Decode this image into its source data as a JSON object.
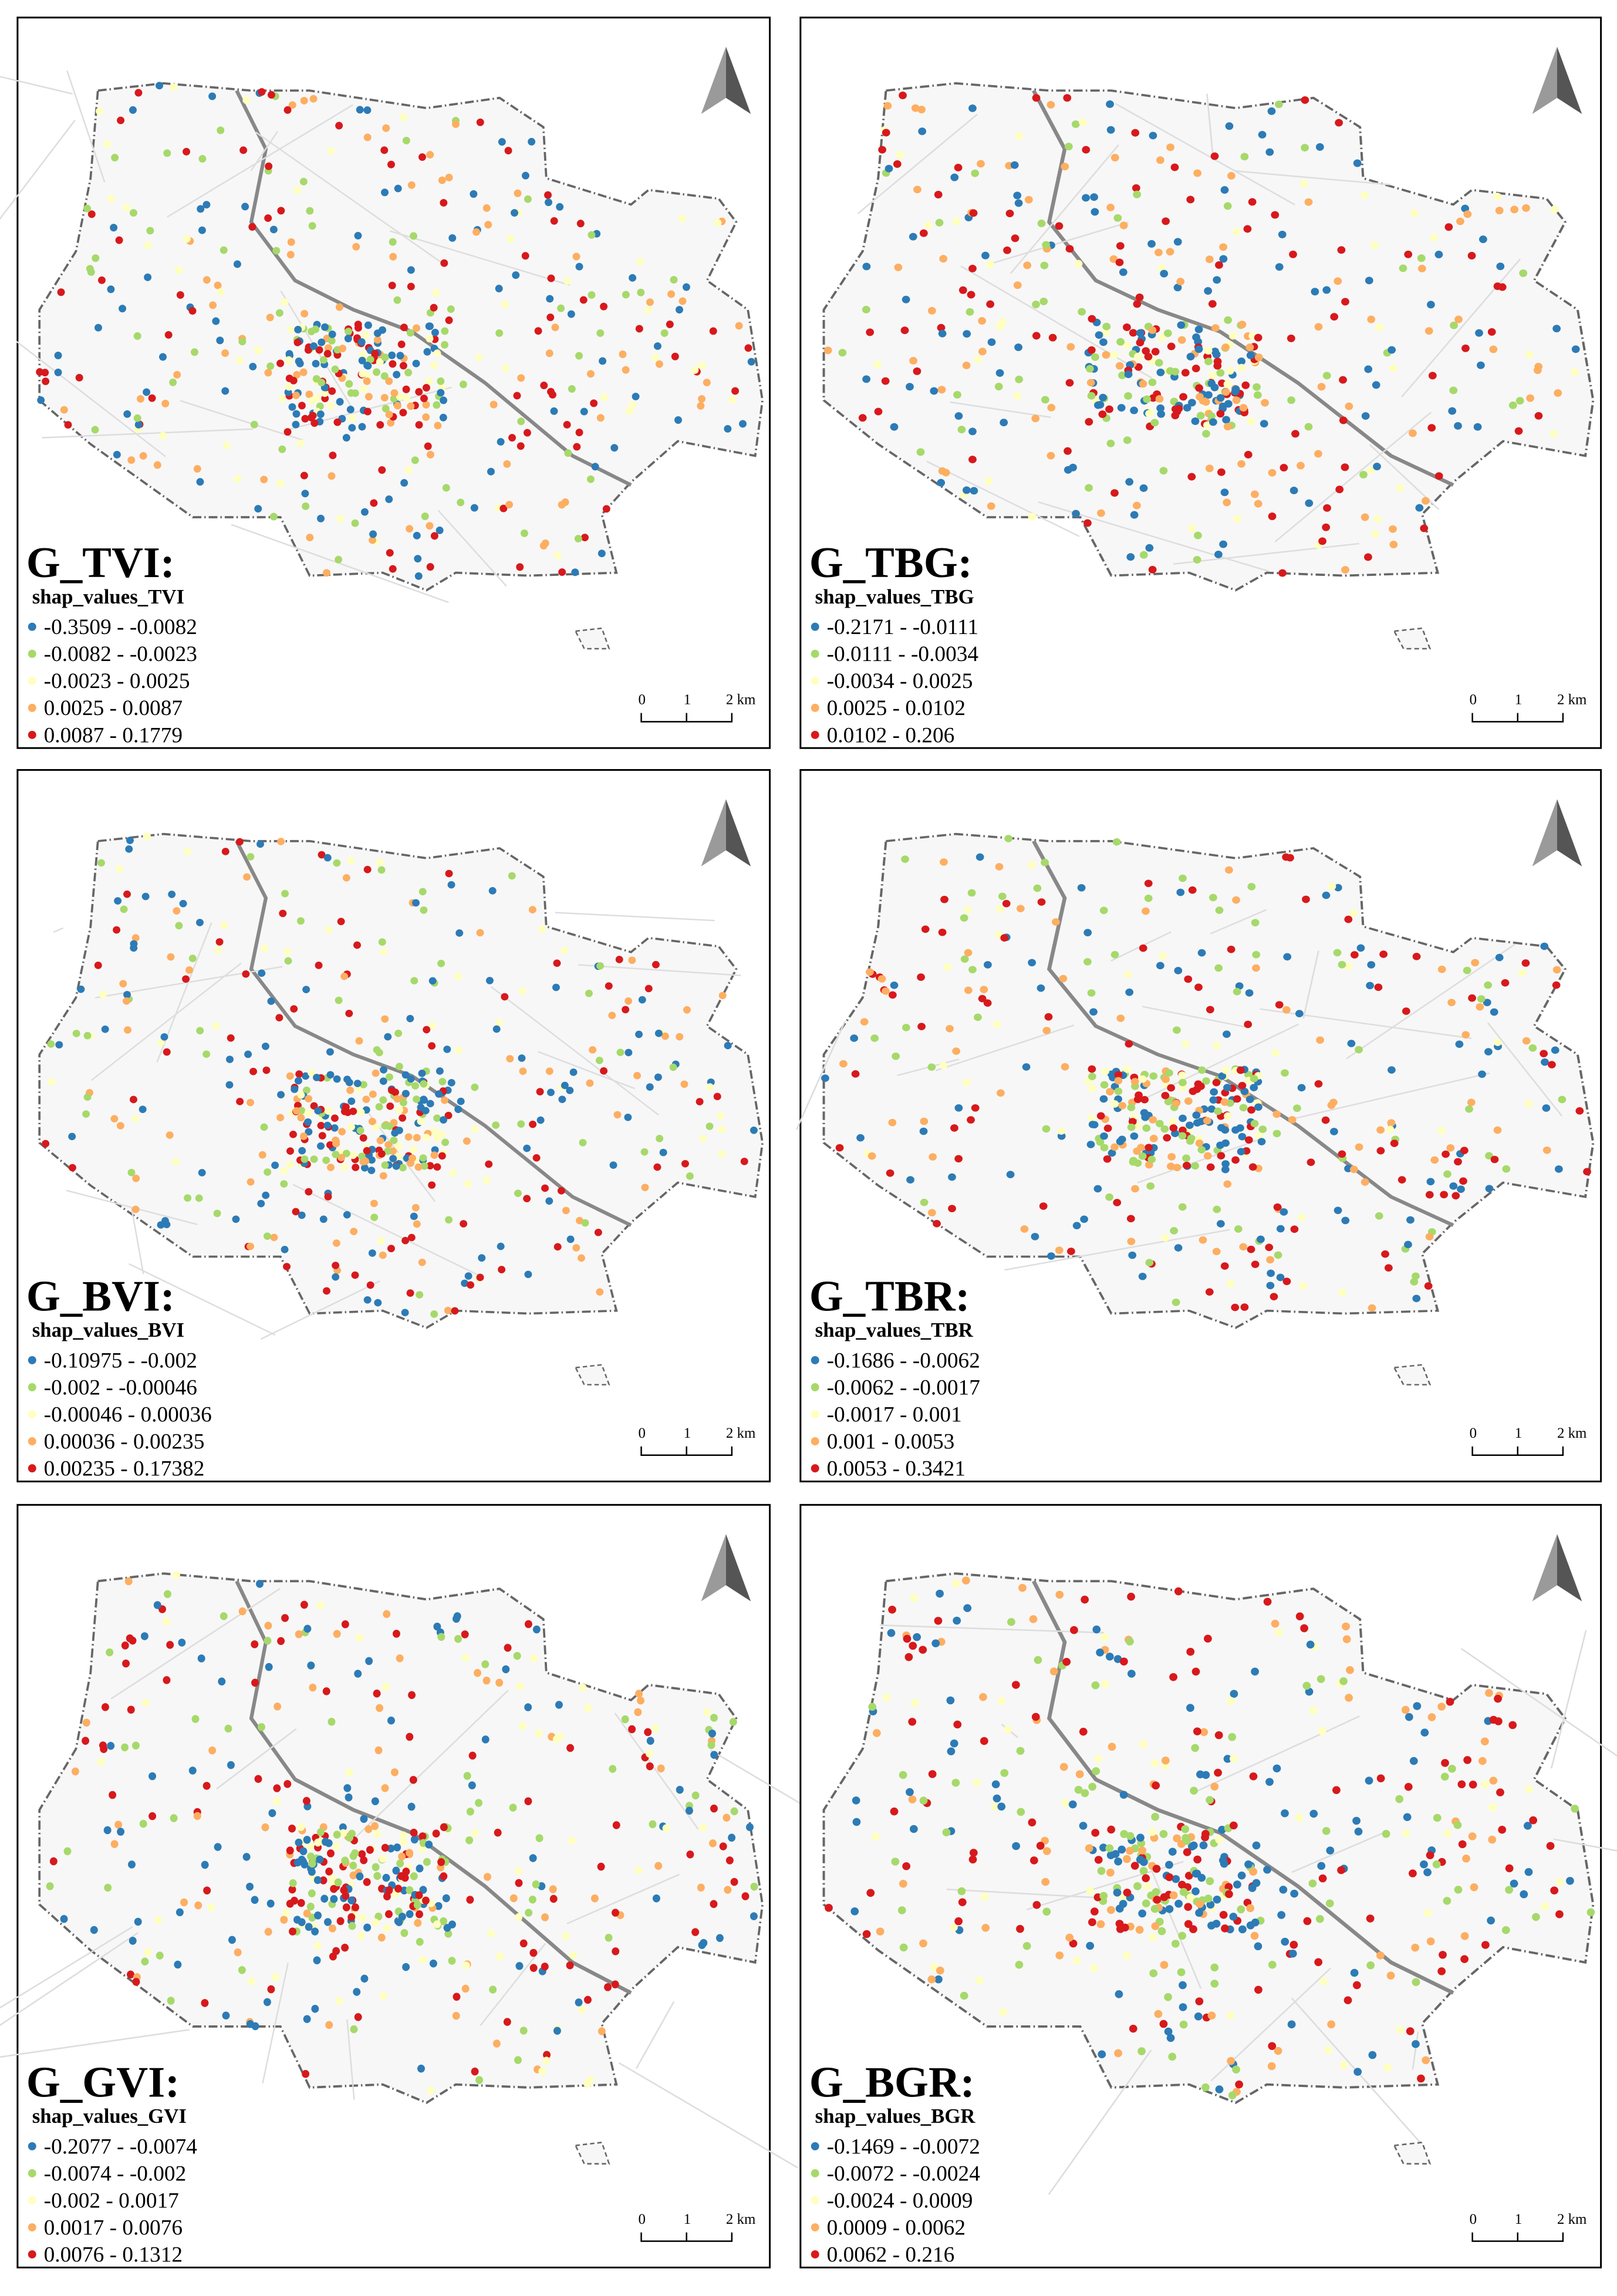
{
  "panels": [
    {
      "title": "G_TVI:",
      "subtitle": "shap_values_TVI",
      "legend": [
        "-0.3509 - -0.0082",
        "-0.0082 - -0.0023",
        "-0.0023 - 0.0025",
        "0.0025 - 0.0087",
        "0.0087 - 0.1779"
      ]
    },
    {
      "title": "G_TBG:",
      "subtitle": "shap_values_TBG",
      "legend": [
        "-0.2171 - -0.0111",
        "-0.0111 - -0.0034",
        "-0.0034 - 0.0025",
        "0.0025 - 0.0102",
        "0.0102 - 0.206"
      ]
    },
    {
      "title": "G_BVI:",
      "subtitle": "shap_values_BVI",
      "legend": [
        "-0.10975 - -0.002",
        "-0.002 - -0.00046",
        "-0.00046 - 0.00036",
        "0.00036 - 0.00235",
        "0.00235 - 0.17382"
      ]
    },
    {
      "title": "G_TBR:",
      "subtitle": "shap_values_TBR",
      "legend": [
        "-0.1686 - -0.0062",
        "-0.0062 - -0.0017",
        "-0.0017 - 0.001",
        "0.001 - 0.0053",
        "0.0053 - 0.3421"
      ]
    },
    {
      "title": "G_GVI:",
      "subtitle": "shap_values_GVI",
      "legend": [
        "-0.2077 - -0.0074",
        "-0.0074 - -0.002",
        "-0.002 - 0.0017",
        "0.0017 - 0.0076",
        "0.0076 - 0.1312"
      ]
    },
    {
      "title": "G_BGR:",
      "subtitle": "shap_values_BGR",
      "legend": [
        "-0.1469 - -0.0072",
        "-0.0072 - -0.0024",
        "-0.0024 - 0.0009",
        "0.0009 - 0.0062",
        "0.0062 - 0.216"
      ]
    }
  ],
  "legend_colors": [
    "#2c7bb6",
    "#a6d96a",
    "#ffffbf",
    "#fdae61",
    "#d7191c"
  ],
  "scale_labels": [
    "0",
    "1",
    "2 km"
  ]
}
